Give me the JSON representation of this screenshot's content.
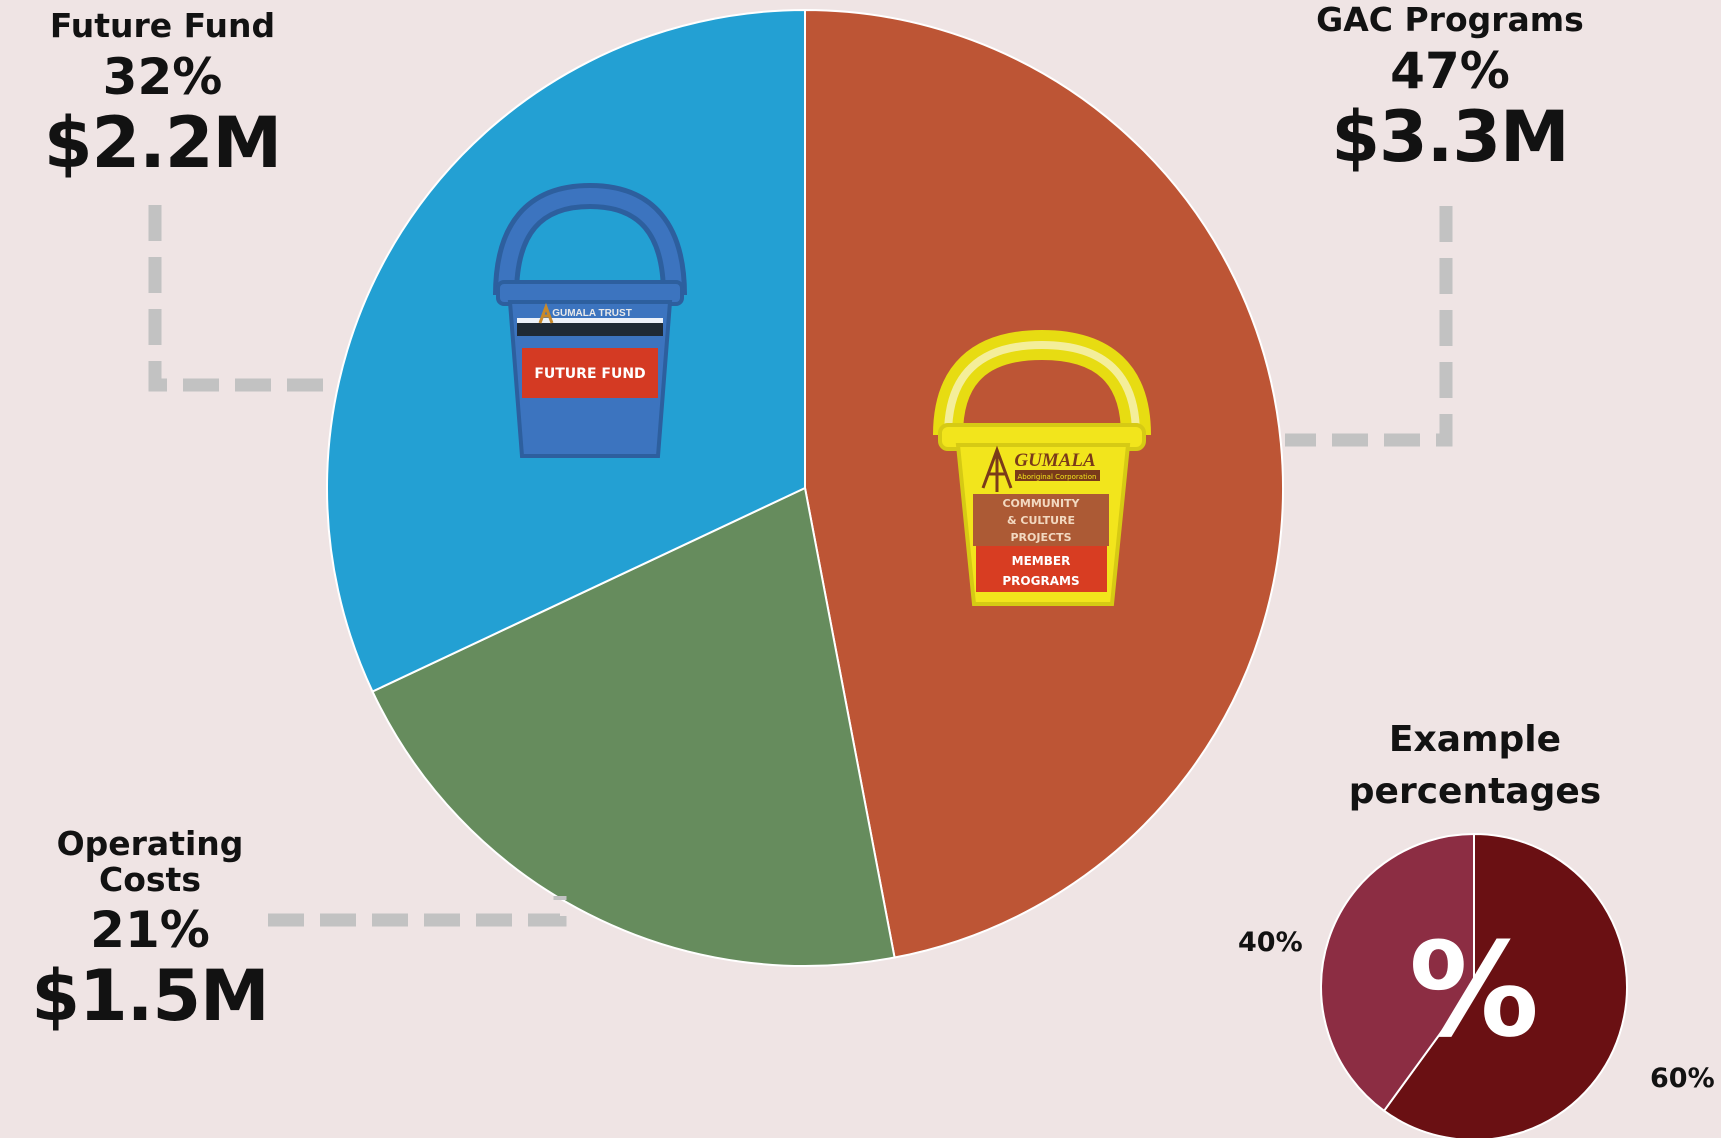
{
  "chart_data": [
    {
      "type": "pie",
      "title": "",
      "slices": [
        {
          "label": "GAC Programs",
          "percent": "47%",
          "amount": "$3.3M",
          "value": 47,
          "color": "#bd5535"
        },
        {
          "label": "Operating Costs",
          "percent": "21%",
          "amount": "$1.5M",
          "value": 21,
          "color": "#668c5d"
        },
        {
          "label": "Future Fund",
          "percent": "32%",
          "amount": "$2.2M",
          "value": 32,
          "color": "#23a0d3"
        }
      ],
      "legend": "none",
      "buckets": {
        "future_fund": {
          "org": "GUMALA TRUST",
          "tag": "FUTURE FUND",
          "color": "#3c74bf",
          "band_color": "#d43a23"
        },
        "gac_programs": {
          "org": "GUMALA",
          "sub": "Aboriginal Corporation",
          "tag1": "COMMUNITY & CULTURE PROJECTS",
          "tag2": "MEMBER PROGRAMS",
          "color": "#f2e51c",
          "band1_color": "#ac5a35",
          "band2_color": "#d83d22"
        }
      }
    },
    {
      "type": "pie",
      "title": "Example percentages",
      "slices": [
        {
          "label": "60%",
          "value": 60,
          "color": "#6a1013"
        },
        {
          "label": "40%",
          "value": 40,
          "color": "#8c2d43"
        }
      ],
      "center_symbol": "%",
      "legend": "none"
    }
  ],
  "colors": {
    "background": "#efe4e4",
    "connector": "#c2c2c2"
  }
}
